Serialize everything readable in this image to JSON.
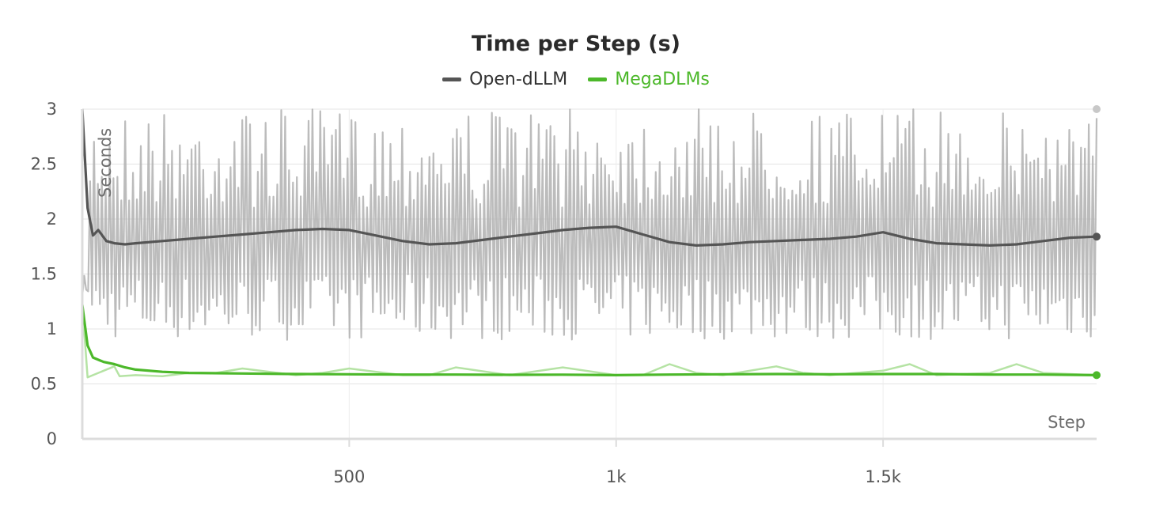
{
  "chart_data": {
    "type": "line",
    "title": "Time per Step (s)",
    "xlabel": "Step",
    "ylabel": "Seconds",
    "xlim": [
      0,
      1900
    ],
    "ylim": [
      0,
      3
    ],
    "x_ticks": [
      500,
      1000,
      1500
    ],
    "x_tick_labels": [
      "500",
      "1k",
      "1.5k"
    ],
    "y_ticks": [
      0,
      0.5,
      1,
      1.5,
      2,
      2.5,
      3
    ],
    "y_tick_labels": [
      "0",
      "0.5",
      "1",
      "1.5",
      "2",
      "2.5",
      "3"
    ],
    "grid": true,
    "legend_position": "top-center",
    "series": [
      {
        "name": "Open-dLLM",
        "color": "#555555",
        "raw_color": "#b0b0b0",
        "raw_range": [
          0.9,
          3.0
        ],
        "x": [
          0,
          10,
          20,
          30,
          45,
          60,
          80,
          100,
          150,
          200,
          250,
          300,
          350,
          400,
          450,
          500,
          550,
          600,
          650,
          700,
          750,
          800,
          850,
          900,
          950,
          1000,
          1050,
          1100,
          1150,
          1200,
          1250,
          1300,
          1350,
          1400,
          1450,
          1500,
          1550,
          1600,
          1650,
          1700,
          1750,
          1800,
          1850,
          1900
        ],
        "values": [
          3.0,
          2.1,
          1.85,
          1.9,
          1.8,
          1.78,
          1.77,
          1.78,
          1.8,
          1.82,
          1.84,
          1.86,
          1.88,
          1.9,
          1.91,
          1.9,
          1.85,
          1.8,
          1.77,
          1.78,
          1.81,
          1.84,
          1.87,
          1.9,
          1.92,
          1.93,
          1.86,
          1.79,
          1.76,
          1.77,
          1.79,
          1.8,
          1.81,
          1.82,
          1.84,
          1.88,
          1.82,
          1.78,
          1.77,
          1.76,
          1.77,
          1.8,
          1.83,
          1.84
        ]
      },
      {
        "name": "MegaDLMs",
        "color": "#4cb82a",
        "raw_color": "#b5e3a4",
        "x": [
          0,
          10,
          20,
          40,
          60,
          80,
          100,
          150,
          200,
          300,
          400,
          500,
          600,
          700,
          800,
          900,
          1000,
          1100,
          1200,
          1300,
          1400,
          1500,
          1600,
          1700,
          1800,
          1900
        ],
        "values": [
          1.22,
          0.85,
          0.74,
          0.7,
          0.68,
          0.65,
          0.63,
          0.61,
          0.6,
          0.595,
          0.59,
          0.588,
          0.585,
          0.585,
          0.583,
          0.584,
          0.58,
          0.585,
          0.588,
          0.59,
          0.588,
          0.59,
          0.59,
          0.585,
          0.585,
          0.58
        ],
        "raw_x": [
          0,
          10,
          20,
          40,
          60,
          70,
          100,
          150,
          200,
          250,
          300,
          400,
          450,
          500,
          600,
          650,
          700,
          800,
          900,
          1000,
          1050,
          1100,
          1150,
          1200,
          1300,
          1350,
          1400,
          1500,
          1550,
          1600,
          1700,
          1750,
          1800,
          1900
        ],
        "raw_values": [
          1.22,
          0.56,
          0.58,
          0.62,
          0.66,
          0.57,
          0.58,
          0.57,
          0.6,
          0.6,
          0.64,
          0.58,
          0.6,
          0.64,
          0.58,
          0.58,
          0.65,
          0.58,
          0.65,
          0.58,
          0.58,
          0.68,
          0.6,
          0.58,
          0.66,
          0.6,
          0.58,
          0.62,
          0.68,
          0.58,
          0.6,
          0.68,
          0.6,
          0.58
        ]
      }
    ]
  }
}
